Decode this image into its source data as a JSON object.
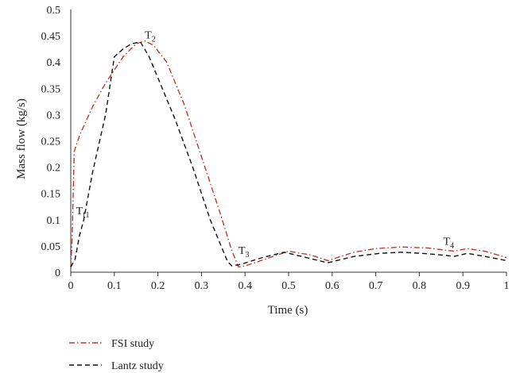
{
  "chart_data": {
    "type": "line",
    "xlabel": "Time (s)",
    "ylabel": "Mass flow (kg/s)",
    "xlim": [
      0,
      1
    ],
    "ylim": [
      0,
      0.5
    ],
    "xticks": [
      "0",
      "0.1",
      "0.2",
      "0.3",
      "0.4",
      "0.5",
      "0.6",
      "0.7",
      "0.8",
      "0.9",
      "1"
    ],
    "yticks": [
      "0",
      "0.05",
      "0.1",
      "0.15",
      "0.2",
      "0.25",
      "0.3",
      "0.35",
      "0.4",
      "0.45",
      "0.5"
    ],
    "grid": false,
    "legend_position": "bottom-left",
    "series": [
      {
        "name": "FSI study",
        "color": "#c0392b",
        "line_style": "dash-dot",
        "x": [
          0.0,
          0.003,
          0.008,
          0.02,
          0.05,
          0.08,
          0.1,
          0.12,
          0.15,
          0.17,
          0.19,
          0.22,
          0.26,
          0.3,
          0.34,
          0.37,
          0.385,
          0.4,
          0.45,
          0.5,
          0.55,
          0.59,
          0.65,
          0.7,
          0.76,
          0.82,
          0.86,
          0.88,
          0.91,
          0.95,
          1.0
        ],
        "y": [
          0.01,
          0.06,
          0.23,
          0.26,
          0.315,
          0.36,
          0.385,
          0.41,
          0.435,
          0.44,
          0.432,
          0.4,
          0.32,
          0.22,
          0.12,
          0.04,
          0.01,
          0.012,
          0.026,
          0.04,
          0.033,
          0.022,
          0.038,
          0.045,
          0.048,
          0.046,
          0.042,
          0.04,
          0.045,
          0.04,
          0.028
        ]
      },
      {
        "name": "Lantz study",
        "color": "#111111",
        "line_style": "dashed",
        "x": [
          0.0,
          0.01,
          0.02,
          0.03,
          0.05,
          0.08,
          0.1,
          0.12,
          0.14,
          0.16,
          0.18,
          0.2,
          0.24,
          0.28,
          0.32,
          0.36,
          0.37,
          0.39,
          0.44,
          0.49,
          0.54,
          0.59,
          0.65,
          0.71,
          0.76,
          0.82,
          0.86,
          0.88,
          0.91,
          0.95,
          1.0
        ],
        "y": [
          0.01,
          0.025,
          0.07,
          0.1,
          0.19,
          0.3,
          0.41,
          0.425,
          0.435,
          0.438,
          0.41,
          0.37,
          0.29,
          0.2,
          0.1,
          0.02,
          0.012,
          0.015,
          0.028,
          0.038,
          0.028,
          0.018,
          0.03,
          0.036,
          0.038,
          0.035,
          0.032,
          0.03,
          0.036,
          0.03,
          0.022
        ]
      }
    ],
    "annotations": [
      {
        "base": "T",
        "sub": "f1",
        "x": 0.012,
        "y": 0.11
      },
      {
        "base": "T",
        "sub": "2",
        "x": 0.17,
        "y": 0.445
      },
      {
        "base": "T",
        "sub": "3",
        "x": 0.385,
        "y": 0.035
      },
      {
        "base": "T",
        "sub": "4",
        "x": 0.855,
        "y": 0.052
      }
    ]
  }
}
